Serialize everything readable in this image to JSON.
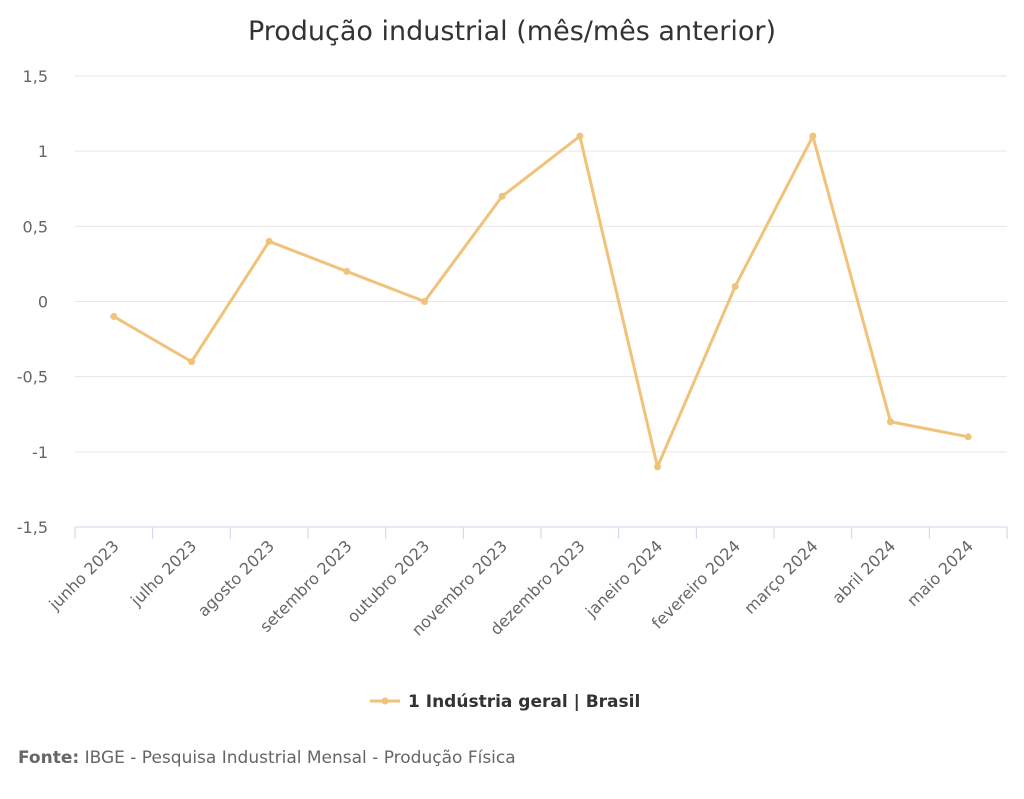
{
  "chart_data": {
    "type": "line",
    "title": "Produção industrial (mês/mês anterior)",
    "xlabel": "",
    "ylabel": "",
    "categories": [
      "junho 2023",
      "julho 2023",
      "agosto 2023",
      "setembro 2023",
      "outubro 2023",
      "novembro 2023",
      "dezembro 2023",
      "janeiro 2024",
      "fevereiro 2024",
      "março 2024",
      "abril 2024",
      "maio 2024"
    ],
    "series": [
      {
        "name": "1 Indústria geral | Brasil",
        "color": "#f0c27a",
        "values": [
          -0.1,
          -0.4,
          0.4,
          0.2,
          0.0,
          0.7,
          1.1,
          -1.1,
          0.1,
          1.1,
          -0.8,
          -0.9
        ]
      }
    ],
    "ylim": [
      -1.5,
      1.5
    ],
    "yticks": [
      1.5,
      1,
      0.5,
      0,
      -0.5,
      -1,
      -1.5
    ],
    "ytick_labels": [
      "1,5",
      "1",
      "0,5",
      "0",
      "-0,5",
      "-1",
      "-1,5"
    ],
    "grid": true,
    "legend": "bottom-center"
  },
  "source": {
    "label": "Fonte:",
    "text": "IBGE - Pesquisa Industrial Mensal - Produção Física"
  }
}
